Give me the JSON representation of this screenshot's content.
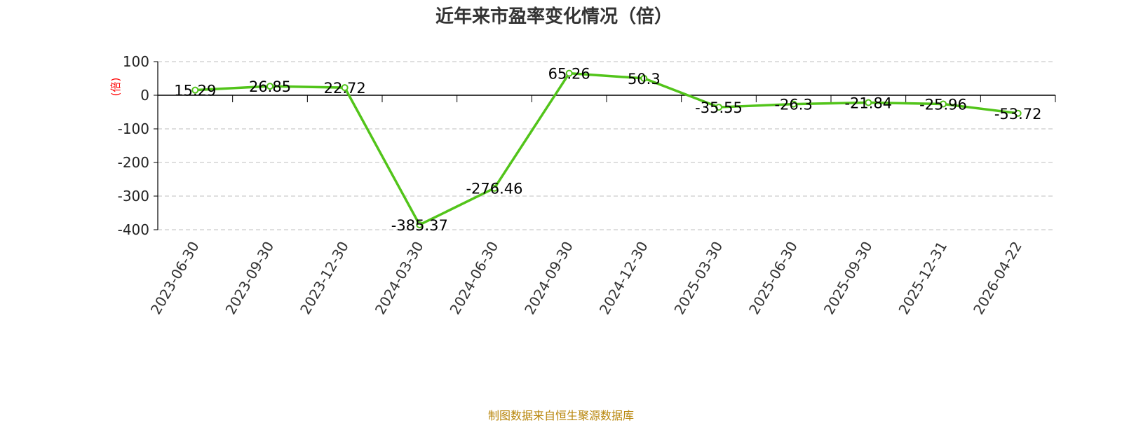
{
  "chart_data": {
    "type": "line",
    "title": "近年来市盈率变化情况（倍）",
    "ylabel": "(倍)",
    "xlabel": "",
    "ylim": [
      -400,
      100
    ],
    "yticks": [
      100,
      0,
      -100,
      -200,
      -300,
      -400
    ],
    "grid": true,
    "x": [
      "2023-06-30",
      "2023-09-30",
      "2023-12-30",
      "2024-03-30",
      "2024-06-30",
      "2024-09-30",
      "2024-12-30",
      "2025-03-30",
      "2025-06-30",
      "2025-09-30",
      "2025-12-31",
      "2026-04-22"
    ],
    "series": [
      {
        "values": [
          15.29,
          26.85,
          22.72,
          -385.37,
          -276.46,
          65.26,
          50.3,
          -35.55,
          -26.3,
          -21.84,
          -25.96,
          -53.72
        ],
        "labels": [
          "15.29",
          "26.85",
          "22.72",
          "-385.37",
          "-276.46",
          "65.26",
          "50.3",
          "-35.55",
          "-26.3",
          "-21.84",
          "-25.96",
          "-53.72"
        ]
      }
    ],
    "colors": {
      "line": "#52c41a",
      "grid": "#cccccc",
      "axis": "#000000",
      "ylabel": "#ff0000"
    }
  },
  "footer": {
    "source": "制图数据来自恒生聚源数据库",
    "color": "#b8860b"
  }
}
